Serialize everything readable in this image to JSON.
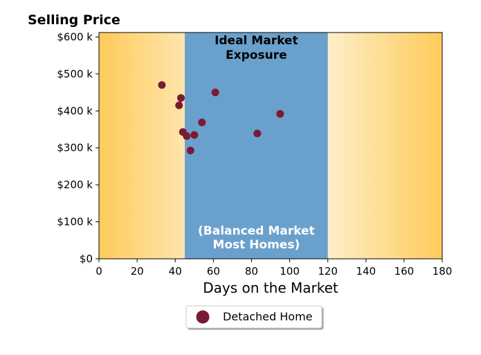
{
  "chart_data": {
    "type": "scatter",
    "ylabel": "Selling Price",
    "xlabel": "Days on the Market",
    "xlim": [
      0,
      180
    ],
    "ylim": [
      0,
      612000
    ],
    "x_ticks": [
      0,
      20,
      40,
      60,
      80,
      100,
      120,
      140,
      160,
      180
    ],
    "x_tick_labels": [
      "0",
      "20",
      "40",
      "60",
      "80",
      "100",
      "120",
      "140",
      "160",
      "180"
    ],
    "y_ticks": [
      0,
      100000,
      200000,
      300000,
      400000,
      500000,
      600000
    ],
    "y_tick_labels": [
      "$0",
      "$100 k",
      "$200 k",
      "$300 k",
      "$400 k",
      "$500 k",
      "$600 k"
    ],
    "grid": false,
    "background_gradient": {
      "edge_color": "#fecb5a",
      "center_color": "#ffffff"
    },
    "ideal_band": {
      "x_range": [
        45,
        120
      ],
      "color": "#6aa0cc",
      "top_text": [
        "Ideal Market",
        "Exposure"
      ],
      "bottom_text": [
        "(Balanced Market",
        "Most Homes)"
      ]
    },
    "series": [
      {
        "name": "Detached Home",
        "color": "#7a1a35",
        "points": [
          {
            "x": 33,
            "y": 470000
          },
          {
            "x": 42,
            "y": 415000
          },
          {
            "x": 43,
            "y": 435000
          },
          {
            "x": 44,
            "y": 343000
          },
          {
            "x": 46,
            "y": 332000
          },
          {
            "x": 48,
            "y": 293000
          },
          {
            "x": 50,
            "y": 335000
          },
          {
            "x": 54,
            "y": 369000
          },
          {
            "x": 61,
            "y": 450000
          },
          {
            "x": 83,
            "y": 339000
          },
          {
            "x": 95,
            "y": 392000
          }
        ]
      }
    ],
    "legend": {
      "position": "bottom-center"
    }
  }
}
